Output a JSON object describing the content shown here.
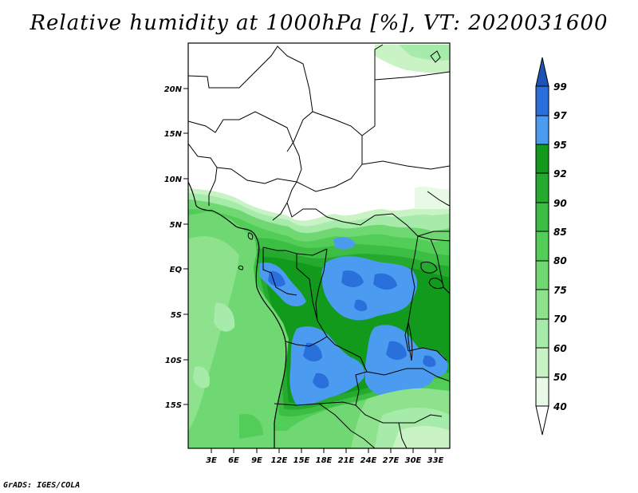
{
  "title": "Relative humidity at 1000hPa [%], VT: 2020031600",
  "credit": "GrADS: IGES/COLA",
  "map": {
    "region": "Central Africa",
    "variable": "Relative humidity",
    "level": "1000hPa",
    "units": "%",
    "valid_time": "2020031600",
    "lat_labels": [
      "20N",
      "15N",
      "10N",
      "5N",
      "EQ",
      "5S",
      "10S",
      "15S"
    ],
    "lon_labels": [
      "3E",
      "6E",
      "9E",
      "12E",
      "15E",
      "18E",
      "21E",
      "24E",
      "27E",
      "30E",
      "33E"
    ]
  },
  "colorbar": {
    "levels": [
      "40",
      "50",
      "60",
      "70",
      "75",
      "80",
      "85",
      "90",
      "92",
      "95",
      "97",
      "99"
    ],
    "colors": [
      "#e8fae6",
      "#c9f3c4",
      "#a6ebaa",
      "#8fe28d",
      "#6fd873",
      "#52cd58",
      "#3cbd43",
      "#26a92f",
      "#129a1c",
      "#4b9cf0",
      "#2a70dc",
      "#1d52b7"
    ]
  }
}
